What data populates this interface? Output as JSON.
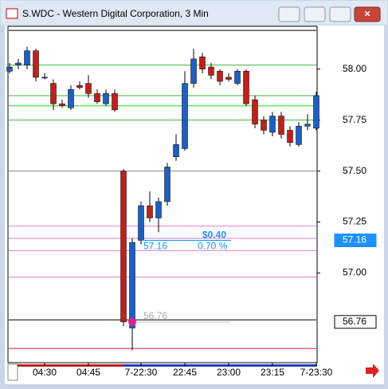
{
  "chart_data": {
    "type": "candlestick",
    "title": "S.WDC - Western Digital Corporation, 3 Min",
    "categories": [
      null,
      null,
      null,
      null,
      "04:30",
      null,
      null,
      null,
      null,
      "04:45",
      null,
      null,
      null,
      null,
      null,
      "7-22:30",
      null,
      null,
      null,
      null,
      "22:45",
      null,
      null,
      null,
      null,
      "23:00",
      null,
      null,
      null,
      null,
      "23:15",
      null,
      null,
      null,
      null,
      "7-23:30"
    ],
    "open": [
      57.99,
      58.02,
      58.02,
      58.09,
      57.96,
      57.93,
      57.83,
      57.81,
      57.92,
      57.93,
      57.88,
      57.83,
      57.88,
      57.5,
      56.73,
      57.16,
      57.33,
      57.27,
      57.35,
      57.57,
      57.61,
      57.93,
      58.06,
      58.01,
      57.99,
      57.96,
      57.93,
      57.99,
      57.85,
      57.75,
      57.69,
      57.77,
      57.7,
      57.63,
      57.72,
      57.71
    ],
    "high": [
      58.03,
      58.05,
      58.11,
      58.1,
      57.98,
      57.95,
      57.85,
      57.92,
      57.94,
      57.97,
      57.9,
      57.9,
      57.9,
      57.51,
      57.17,
      57.35,
      57.4,
      57.37,
      57.54,
      57.68,
      57.99,
      58.1,
      58.08,
      58.03,
      58.0,
      57.98,
      58.0,
      58.0,
      57.87,
      57.77,
      57.79,
      57.79,
      57.72,
      57.74,
      57.78,
      57.89
    ],
    "low": [
      57.98,
      58.0,
      58.0,
      57.94,
      57.95,
      57.8,
      57.81,
      57.8,
      57.9,
      57.86,
      57.83,
      57.82,
      57.79,
      56.74,
      56.62,
      57.14,
      57.25,
      57.2,
      57.33,
      57.55,
      57.6,
      57.91,
      57.98,
      57.95,
      57.92,
      57.94,
      57.92,
      57.82,
      57.71,
      57.68,
      57.67,
      57.66,
      57.62,
      57.62,
      57.7,
      57.7
    ],
    "close": [
      58.01,
      58.03,
      58.09,
      57.96,
      57.96,
      57.83,
      57.82,
      57.9,
      57.91,
      57.88,
      57.84,
      57.88,
      57.8,
      56.76,
      57.15,
      57.33,
      57.27,
      57.35,
      57.52,
      57.63,
      57.93,
      58.05,
      58.0,
      57.97,
      57.94,
      57.95,
      57.99,
      57.83,
      57.73,
      57.7,
      57.77,
      57.68,
      57.64,
      57.72,
      57.73,
      57.87
    ],
    "up_color": "#1f5fbf",
    "down_color": "#c0201c",
    "ylim": [
      56.56,
      58.21
    ],
    "yticks": [
      {
        "value": 57,
        "label": "57.00"
      },
      57.25,
      {
        "value": 57.5,
        "label": "57.50"
      },
      57.75,
      {
        "value": 58,
        "label": "58.00"
      }
    ],
    "levels": [
      {
        "value": 58.19,
        "color": "#000000"
      },
      {
        "value": 58.02,
        "color": "#3cb83c"
      },
      {
        "value": 57.87,
        "color": "#3cb83c"
      },
      {
        "value": 57.82,
        "color": "#22dd22"
      },
      {
        "value": 57.75,
        "color": "#3cb83c"
      },
      {
        "value": 57.5,
        "color": "#888888"
      },
      {
        "value": 57.23,
        "color": "#e080c8"
      },
      {
        "value": 57.17,
        "color": "#e080c8"
      },
      {
        "value": 57.11,
        "color": "#e080c8"
      },
      {
        "value": 56.98,
        "color": "#e080c8"
      },
      {
        "value": 56.77,
        "color": "#000000"
      },
      {
        "value": 56.63,
        "color": "#d02020"
      }
    ],
    "price_tags": [
      {
        "value": 57.16,
        "color": "#1e90ff"
      },
      {
        "value": 56.76,
        "color": "#000000"
      }
    ],
    "annotations": [
      "$0.40",
      "0.70 %"
    ]
  }
}
